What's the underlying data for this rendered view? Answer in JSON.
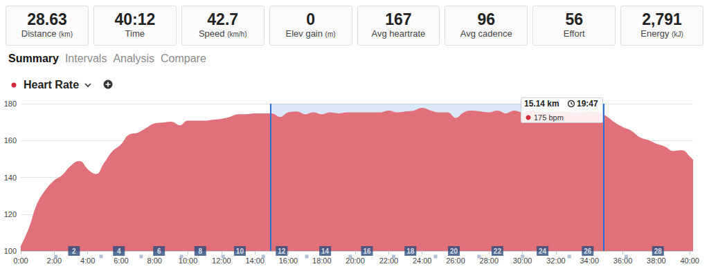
{
  "stats": [
    {
      "value": "28.63",
      "label": "Distance",
      "unit": "(km)"
    },
    {
      "value": "40:12",
      "label": "Time"
    },
    {
      "value": "42.7",
      "label": "Speed",
      "unit": "(km/h)"
    },
    {
      "value": "0",
      "label": "Elev gain",
      "unit": "(m)"
    },
    {
      "value": "167",
      "label": "Avg heartrate"
    },
    {
      "value": "96",
      "label": "Avg cadence"
    },
    {
      "value": "56",
      "label": "Effort"
    },
    {
      "value": "2,791",
      "label": "Energy",
      "unit": "(kJ)"
    }
  ],
  "tabs": [
    "Summary",
    "Intervals",
    "Analysis",
    "Compare"
  ],
  "chart_data": {
    "type": "area",
    "title": "Heart Rate",
    "color": "#e0707a",
    "x": [
      0,
      30,
      60,
      90,
      120,
      150,
      180,
      210,
      240,
      270,
      300,
      330,
      360,
      390,
      420,
      450,
      480,
      510,
      540,
      570,
      600,
      630,
      660,
      690,
      720,
      750,
      780,
      810,
      840,
      870,
      900,
      930,
      960,
      990,
      1020,
      1050,
      1080,
      1110,
      1140,
      1170,
      1200,
      1230,
      1260,
      1290,
      1320,
      1350,
      1380,
      1410,
      1440,
      1470,
      1500,
      1530,
      1560,
      1590,
      1620,
      1650,
      1680,
      1710,
      1740,
      1770,
      1800,
      1830,
      1860,
      1890,
      1920,
      1950,
      1980,
      2010,
      2040,
      2070,
      2100,
      2130,
      2160,
      2190,
      2220,
      2250,
      2280,
      2310,
      2340,
      2370,
      2400,
      2412
    ],
    "values": [
      102,
      112,
      125.5,
      133,
      138,
      141,
      146,
      148.5,
      144,
      141.5,
      147.5,
      154,
      157.5,
      163,
      164,
      166.5,
      169,
      169.5,
      170,
      168,
      170.5,
      170.5,
      170.5,
      171,
      171.5,
      172.5,
      174,
      174,
      174.5,
      174.5,
      174.5,
      172.5,
      175,
      175.5,
      174,
      175,
      174,
      175,
      174.5,
      175,
      175,
      175,
      175,
      175,
      176,
      175,
      175.5,
      176,
      177.5,
      176,
      175,
      175,
      172,
      175,
      176,
      175.5,
      175,
      176,
      174.5,
      176,
      175,
      176,
      175.5,
      175,
      175.5,
      175.5,
      175,
      175,
      175.5,
      175,
      173,
      169.5,
      167,
      165,
      161.5,
      160,
      158,
      156.5,
      154,
      154.5,
      151,
      149
    ],
    "xlim": [
      0,
      2412
    ],
    "xticks": [
      {
        "value": 0,
        "label": "0:00"
      },
      {
        "value": 120,
        "label": "2:00"
      },
      {
        "value": 240,
        "label": "4:00"
      },
      {
        "value": 360,
        "label": "6:00"
      },
      {
        "value": 480,
        "label": "8:00"
      },
      {
        "value": 600,
        "label": "10:00"
      },
      {
        "value": 720,
        "label": "12:00"
      },
      {
        "value": 840,
        "label": "14:00"
      },
      {
        "value": 960,
        "label": "16:00"
      },
      {
        "value": 1080,
        "label": "18:00"
      },
      {
        "value": 1200,
        "label": "20:00"
      },
      {
        "value": 1320,
        "label": "22:00"
      },
      {
        "value": 1440,
        "label": "24:00"
      },
      {
        "value": 1560,
        "label": "26:00"
      },
      {
        "value": 1680,
        "label": "28:00"
      },
      {
        "value": 1800,
        "label": "30:00"
      },
      {
        "value": 1920,
        "label": "32:00"
      },
      {
        "value": 2040,
        "label": "34:00"
      },
      {
        "value": 2160,
        "label": "36:00"
      },
      {
        "value": 2280,
        "label": "38:00"
      },
      {
        "value": 2400,
        "label": "40:00"
      }
    ],
    "ylim": [
      100,
      180
    ],
    "yticks": [
      100,
      120,
      140,
      160,
      180
    ],
    "grid": true,
    "selection": {
      "start": 895,
      "end": 2090
    },
    "tooltip": {
      "distance": "15.14 km",
      "time": "19:47",
      "heart_rate": "175 bpm"
    },
    "km_markers": {
      "x": [
        126,
        191,
        288,
        352,
        432,
        496,
        576,
        644,
        726,
        786,
        870,
        936,
        1026,
        1092,
        1182,
        1242,
        1338,
        1398,
        1488,
        1554,
        1644,
        1710,
        1800,
        1872,
        1968,
        2034,
        2172,
        2286
      ],
      "labels": [
        null,
        "2",
        null,
        "4",
        null,
        "6",
        null,
        "8",
        null,
        "10",
        null,
        "12",
        null,
        "14",
        null,
        "16",
        null,
        "18",
        null,
        "20",
        null,
        "22",
        null,
        "24",
        null,
        "26",
        null,
        "28"
      ]
    }
  }
}
